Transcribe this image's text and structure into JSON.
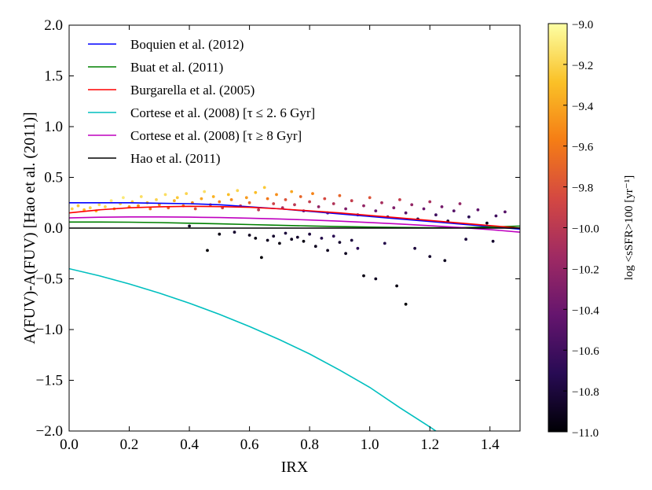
{
  "chart_data": {
    "type": "scatter",
    "xlabel": "IRX",
    "ylabel": "A(FUV)-A(FUV) [Hao et al. (2011)]",
    "xlim": [
      0.0,
      1.5
    ],
    "ylim": [
      -2.0,
      2.0
    ],
    "xticks": [
      0.0,
      0.2,
      0.4,
      0.6,
      0.8,
      1.0,
      1.2,
      1.4
    ],
    "xtick_labels": [
      "0.0",
      "0.2",
      "0.4",
      "0.6",
      "0.8",
      "1.0",
      "1.2",
      "1.4"
    ],
    "yticks": [
      -2.0,
      -1.5,
      -1.0,
      -0.5,
      0.0,
      0.5,
      1.0,
      1.5,
      2.0
    ],
    "ytick_labels": [
      "−2.0",
      "−1.5",
      "−1.0",
      "−0.5",
      "0.0",
      "0.5",
      "1.0",
      "1.5",
      "2.0"
    ],
    "legend_position": "top-left",
    "series": [
      {
        "name": "Boquien et al. (2012)",
        "color": "#0000ff",
        "x": [
          0.0,
          0.1,
          0.2,
          0.3,
          0.4,
          0.5,
          0.6,
          0.7,
          0.8,
          0.9,
          1.0,
          1.1,
          1.2,
          1.3,
          1.4,
          1.5
        ],
        "y": [
          0.25,
          0.25,
          0.25,
          0.245,
          0.24,
          0.23,
          0.21,
          0.19,
          0.165,
          0.14,
          0.115,
          0.09,
          0.065,
          0.04,
          0.015,
          -0.01
        ]
      },
      {
        "name": "Buat et al. (2011)",
        "color": "#008000",
        "x": [
          0.0,
          0.1,
          0.2,
          0.3,
          0.4,
          0.5,
          0.6,
          0.7,
          0.8,
          0.9,
          1.0,
          1.1,
          1.2,
          1.3,
          1.4,
          1.5
        ],
        "y": [
          0.06,
          0.06,
          0.058,
          0.054,
          0.048,
          0.042,
          0.035,
          0.028,
          0.021,
          0.015,
          0.01,
          0.006,
          0.004,
          0.005,
          0.01,
          0.02
        ]
      },
      {
        "name": "Burgarella et al. (2005)",
        "color": "#ff0000",
        "x": [
          0.0,
          0.1,
          0.2,
          0.3,
          0.4,
          0.5,
          0.6,
          0.7,
          0.8,
          0.9,
          1.0,
          1.1,
          1.2,
          1.3,
          1.4,
          1.5
        ],
        "y": [
          0.15,
          0.18,
          0.2,
          0.21,
          0.215,
          0.212,
          0.205,
          0.19,
          0.17,
          0.15,
          0.125,
          0.1,
          0.075,
          0.05,
          0.025,
          0.0
        ]
      },
      {
        "name": "Cortese et al. (2008) [τ ≤ 2. 6 Gyr]",
        "color": "#00bfbf",
        "x": [
          0.0,
          0.1,
          0.2,
          0.3,
          0.4,
          0.5,
          0.6,
          0.7,
          0.8,
          0.9,
          1.0,
          1.1,
          1.2,
          1.22
        ],
        "y": [
          -0.4,
          -0.47,
          -0.55,
          -0.64,
          -0.74,
          -0.85,
          -0.97,
          -1.1,
          -1.24,
          -1.4,
          -1.57,
          -1.77,
          -1.96,
          -2.0
        ]
      },
      {
        "name": "Cortese et al. (2008) [τ ≥ 8 Gyr]",
        "color": "#bf00bf",
        "x": [
          0.0,
          0.1,
          0.2,
          0.3,
          0.4,
          0.5,
          0.6,
          0.7,
          0.8,
          0.9,
          1.0,
          1.1,
          1.2,
          1.3,
          1.4,
          1.5
        ],
        "y": [
          0.1,
          0.107,
          0.11,
          0.11,
          0.108,
          0.104,
          0.098,
          0.09,
          0.08,
          0.068,
          0.055,
          0.04,
          0.024,
          0.006,
          -0.015,
          -0.04
        ]
      },
      {
        "name": "Hao et al. (2011)",
        "color": "#000000",
        "x": [
          0.0,
          1.5
        ],
        "y": [
          0.0,
          0.0
        ]
      }
    ],
    "scatter": {
      "color_variable": "log <sSFR>100 [yr⁻¹]",
      "points": [
        {
          "x": 0.01,
          "y": 0.19,
          "c": -9.2
        },
        {
          "x": 0.03,
          "y": 0.22,
          "c": -9.25
        },
        {
          "x": 0.05,
          "y": 0.18,
          "c": -9.3
        },
        {
          "x": 0.07,
          "y": 0.2,
          "c": -9.2
        },
        {
          "x": 0.09,
          "y": 0.17,
          "c": -9.35
        },
        {
          "x": 0.1,
          "y": 0.23,
          "c": -9.15
        },
        {
          "x": 0.12,
          "y": 0.21,
          "c": -9.2
        },
        {
          "x": 0.14,
          "y": 0.27,
          "c": -9.1
        },
        {
          "x": 0.15,
          "y": 0.19,
          "c": -9.4
        },
        {
          "x": 0.17,
          "y": 0.24,
          "c": -9.2
        },
        {
          "x": 0.18,
          "y": 0.3,
          "c": -9.1
        },
        {
          "x": 0.2,
          "y": 0.21,
          "c": -9.45
        },
        {
          "x": 0.21,
          "y": 0.26,
          "c": -9.25
        },
        {
          "x": 0.23,
          "y": 0.22,
          "c": -9.5
        },
        {
          "x": 0.24,
          "y": 0.31,
          "c": -9.15
        },
        {
          "x": 0.26,
          "y": 0.25,
          "c": -9.3
        },
        {
          "x": 0.27,
          "y": 0.19,
          "c": -9.6
        },
        {
          "x": 0.29,
          "y": 0.28,
          "c": -9.2
        },
        {
          "x": 0.3,
          "y": 0.23,
          "c": -9.5
        },
        {
          "x": 0.32,
          "y": 0.33,
          "c": -9.15
        },
        {
          "x": 0.33,
          "y": 0.2,
          "c": -9.7
        },
        {
          "x": 0.35,
          "y": 0.27,
          "c": -9.35
        },
        {
          "x": 0.36,
          "y": 0.3,
          "c": -9.25
        },
        {
          "x": 0.38,
          "y": 0.22,
          "c": -9.6
        },
        {
          "x": 0.39,
          "y": 0.34,
          "c": -9.2
        },
        {
          "x": 0.41,
          "y": 0.25,
          "c": -9.55
        },
        {
          "x": 0.42,
          "y": 0.19,
          "c": -9.8
        },
        {
          "x": 0.44,
          "y": 0.29,
          "c": -9.4
        },
        {
          "x": 0.45,
          "y": 0.36,
          "c": -9.15
        },
        {
          "x": 0.47,
          "y": 0.23,
          "c": -9.7
        },
        {
          "x": 0.48,
          "y": 0.31,
          "c": -9.35
        },
        {
          "x": 0.5,
          "y": 0.26,
          "c": -9.6
        },
        {
          "x": 0.51,
          "y": 0.2,
          "c": -9.9
        },
        {
          "x": 0.53,
          "y": 0.33,
          "c": -9.3
        },
        {
          "x": 0.54,
          "y": 0.28,
          "c": -9.5
        },
        {
          "x": 0.56,
          "y": 0.37,
          "c": -9.2
        },
        {
          "x": 0.57,
          "y": 0.22,
          "c": -9.85
        },
        {
          "x": 0.59,
          "y": 0.3,
          "c": -9.45
        },
        {
          "x": 0.6,
          "y": 0.25,
          "c": -9.7
        },
        {
          "x": 0.62,
          "y": 0.35,
          "c": -9.3
        },
        {
          "x": 0.63,
          "y": 0.18,
          "c": -10.0
        },
        {
          "x": 0.65,
          "y": 0.4,
          "c": -9.25
        },
        {
          "x": 0.66,
          "y": 0.29,
          "c": -9.6
        },
        {
          "x": 0.68,
          "y": 0.24,
          "c": -9.9
        },
        {
          "x": 0.69,
          "y": 0.33,
          "c": -9.5
        },
        {
          "x": 0.71,
          "y": 0.2,
          "c": -10.1
        },
        {
          "x": 0.72,
          "y": 0.28,
          "c": -9.8
        },
        {
          "x": 0.74,
          "y": 0.36,
          "c": -9.4
        },
        {
          "x": 0.75,
          "y": 0.23,
          "c": -10.0
        },
        {
          "x": 0.77,
          "y": 0.31,
          "c": -9.7
        },
        {
          "x": 0.78,
          "y": 0.17,
          "c": -10.3
        },
        {
          "x": 0.8,
          "y": 0.26,
          "c": -9.95
        },
        {
          "x": 0.81,
          "y": 0.34,
          "c": -9.55
        },
        {
          "x": 0.83,
          "y": 0.21,
          "c": -10.2
        },
        {
          "x": 0.85,
          "y": 0.29,
          "c": -9.85
        },
        {
          "x": 0.86,
          "y": 0.15,
          "c": -10.4
        },
        {
          "x": 0.88,
          "y": 0.24,
          "c": -10.05
        },
        {
          "x": 0.9,
          "y": 0.32,
          "c": -9.7
        },
        {
          "x": 0.92,
          "y": 0.19,
          "c": -10.3
        },
        {
          "x": 0.94,
          "y": 0.27,
          "c": -9.95
        },
        {
          "x": 0.96,
          "y": 0.13,
          "c": -10.5
        },
        {
          "x": 0.98,
          "y": 0.22,
          "c": -10.2
        },
        {
          "x": 1.0,
          "y": 0.3,
          "c": -9.8
        },
        {
          "x": 1.02,
          "y": 0.17,
          "c": -10.4
        },
        {
          "x": 1.04,
          "y": 0.25,
          "c": -10.1
        },
        {
          "x": 1.06,
          "y": 0.11,
          "c": -10.6
        },
        {
          "x": 1.08,
          "y": 0.2,
          "c": -10.3
        },
        {
          "x": 1.1,
          "y": 0.28,
          "c": -9.95
        },
        {
          "x": 1.12,
          "y": 0.15,
          "c": -10.5
        },
        {
          "x": 1.14,
          "y": 0.23,
          "c": -10.2
        },
        {
          "x": 1.16,
          "y": 0.09,
          "c": -10.7
        },
        {
          "x": 1.18,
          "y": 0.19,
          "c": -10.4
        },
        {
          "x": 1.2,
          "y": 0.26,
          "c": -10.1
        },
        {
          "x": 1.22,
          "y": 0.13,
          "c": -10.6
        },
        {
          "x": 1.24,
          "y": 0.21,
          "c": -10.35
        },
        {
          "x": 1.26,
          "y": 0.07,
          "c": -10.8
        },
        {
          "x": 1.28,
          "y": 0.17,
          "c": -10.5
        },
        {
          "x": 1.3,
          "y": 0.24,
          "c": -10.2
        },
        {
          "x": 1.33,
          "y": 0.11,
          "c": -10.7
        },
        {
          "x": 1.36,
          "y": 0.18,
          "c": -10.45
        },
        {
          "x": 1.39,
          "y": 0.05,
          "c": -10.9
        },
        {
          "x": 1.42,
          "y": 0.12,
          "c": -10.6
        },
        {
          "x": 1.45,
          "y": 0.16,
          "c": -10.5
        },
        {
          "x": 0.4,
          "y": 0.02,
          "c": -10.9
        },
        {
          "x": 0.46,
          "y": -0.22,
          "c": -11.0
        },
        {
          "x": 0.5,
          "y": -0.06,
          "c": -10.95
        },
        {
          "x": 0.55,
          "y": -0.04,
          "c": -10.85
        },
        {
          "x": 0.6,
          "y": -0.07,
          "c": -10.9
        },
        {
          "x": 0.62,
          "y": -0.1,
          "c": -10.95
        },
        {
          "x": 0.64,
          "y": -0.29,
          "c": -11.0
        },
        {
          "x": 0.66,
          "y": -0.12,
          "c": -10.9
        },
        {
          "x": 0.68,
          "y": -0.08,
          "c": -10.85
        },
        {
          "x": 0.7,
          "y": -0.15,
          "c": -10.95
        },
        {
          "x": 0.72,
          "y": -0.05,
          "c": -10.8
        },
        {
          "x": 0.74,
          "y": -0.11,
          "c": -10.9
        },
        {
          "x": 0.76,
          "y": -0.09,
          "c": -10.85
        },
        {
          "x": 0.78,
          "y": -0.13,
          "c": -10.95
        },
        {
          "x": 0.8,
          "y": -0.06,
          "c": -10.8
        },
        {
          "x": 0.82,
          "y": -0.18,
          "c": -10.9
        },
        {
          "x": 0.84,
          "y": -0.1,
          "c": -10.75
        },
        {
          "x": 0.86,
          "y": -0.22,
          "c": -10.9
        },
        {
          "x": 0.88,
          "y": -0.08,
          "c": -10.7
        },
        {
          "x": 0.9,
          "y": -0.14,
          "c": -10.85
        },
        {
          "x": 0.92,
          "y": -0.25,
          "c": -10.9
        },
        {
          "x": 0.94,
          "y": -0.12,
          "c": -10.8
        },
        {
          "x": 0.96,
          "y": -0.2,
          "c": -10.7
        },
        {
          "x": 0.98,
          "y": -0.47,
          "c": -10.95
        },
        {
          "x": 1.02,
          "y": -0.5,
          "c": -10.9
        },
        {
          "x": 1.05,
          "y": -0.15,
          "c": -10.75
        },
        {
          "x": 1.09,
          "y": -0.57,
          "c": -10.95
        },
        {
          "x": 1.12,
          "y": -0.75,
          "c": -11.0
        },
        {
          "x": 1.15,
          "y": -0.2,
          "c": -10.8
        },
        {
          "x": 1.2,
          "y": -0.28,
          "c": -10.85
        },
        {
          "x": 1.25,
          "y": -0.32,
          "c": -10.9
        },
        {
          "x": 1.32,
          "y": -0.11,
          "c": -10.8
        },
        {
          "x": 1.41,
          "y": -0.13,
          "c": -10.85
        }
      ]
    },
    "colorbar": {
      "label": "log <sSFR>100 [yr⁻¹]",
      "range": [
        -11.0,
        -9.0
      ],
      "ticks": [
        -9.0,
        -9.2,
        -9.4,
        -9.6,
        -9.8,
        -10.0,
        -10.2,
        -10.4,
        -10.6,
        -10.8,
        -11.0
      ],
      "tick_labels": [
        "−9.0",
        "−9.2",
        "−9.4",
        "−9.6",
        "−9.8",
        "−10.0",
        "−10.2",
        "−10.4",
        "−10.6",
        "−10.8",
        "−11.0"
      ],
      "colormap": "inferno",
      "stops": [
        "#000004",
        "#280b54",
        "#65156e",
        "#9f2a63",
        "#d44842",
        "#f57d15",
        "#fac127",
        "#fcffa4"
      ]
    }
  }
}
